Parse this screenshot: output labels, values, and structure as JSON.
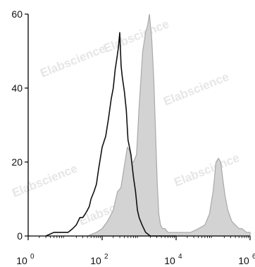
{
  "chart_data": {
    "type": "area",
    "x_scale": "log",
    "xlim": [
      1,
      1000000
    ],
    "ylim": [
      0,
      60
    ],
    "x_ticks": [
      {
        "value": 1,
        "base": "10",
        "exp": "0"
      },
      {
        "value": 100,
        "base": "10",
        "exp": "2"
      },
      {
        "value": 10000,
        "base": "10",
        "exp": "4"
      },
      {
        "value": 1000000,
        "base": "10",
        "exp": "6"
      }
    ],
    "y_ticks": [
      {
        "value": 0,
        "label": "0"
      },
      {
        "value": 20,
        "label": "20"
      },
      {
        "value": 40,
        "label": "40"
      },
      {
        "value": 60,
        "label": "60"
      }
    ],
    "grid": false,
    "legend": "none",
    "watermark": "Elabscience",
    "series": [
      {
        "style": "filled",
        "color": "#a9a9a9",
        "fill": "#d3d3d3",
        "x": [
          5,
          10,
          20,
          40,
          70,
          100,
          140,
          200,
          260,
          320,
          400,
          480,
          560,
          630,
          700,
          850,
          1000,
          1250,
          1500,
          1700,
          1900,
          2200,
          2500,
          2800,
          3100,
          3400,
          3800,
          4300,
          5000,
          6000,
          7500,
          9000,
          12000,
          16000,
          25000,
          40000,
          60000,
          80000,
          100000,
          120000,
          140000,
          160000,
          180000,
          210000,
          250000,
          320000,
          400000,
          500000,
          600000,
          800000,
          1000000
        ],
        "y": [
          0,
          0,
          0,
          0,
          1,
          2,
          4,
          7,
          12,
          13,
          19,
          24,
          23,
          20,
          20,
          22,
          35,
          50,
          55,
          57,
          60,
          53,
          42,
          27,
          14,
          6,
          3,
          2,
          2,
          1,
          1,
          1,
          1,
          1,
          1,
          2,
          3,
          6,
          12,
          20,
          21,
          20,
          16,
          11,
          7,
          4,
          3,
          2,
          2,
          1,
          1
        ]
      },
      {
        "style": "line",
        "color": "#111111",
        "x": [
          3,
          5,
          8,
          12,
          16,
          20,
          25,
          30,
          35,
          40,
          45,
          50,
          60,
          70,
          80,
          100,
          125,
          150,
          175,
          200,
          225,
          250,
          275,
          300,
          325,
          350,
          400,
          450,
          500,
          600,
          700,
          800,
          900,
          1000,
          1200,
          1500,
          2000,
          3000,
          5000,
          10000
        ],
        "y": [
          0,
          1,
          1,
          1,
          2,
          3,
          5,
          5,
          6,
          7,
          8,
          10,
          12,
          14,
          18,
          24,
          27,
          32,
          37,
          40,
          45,
          48,
          51,
          55,
          46,
          43,
          39,
          34,
          26,
          22,
          16,
          12,
          7,
          5,
          3,
          1,
          0,
          0,
          0,
          0
        ]
      }
    ]
  }
}
